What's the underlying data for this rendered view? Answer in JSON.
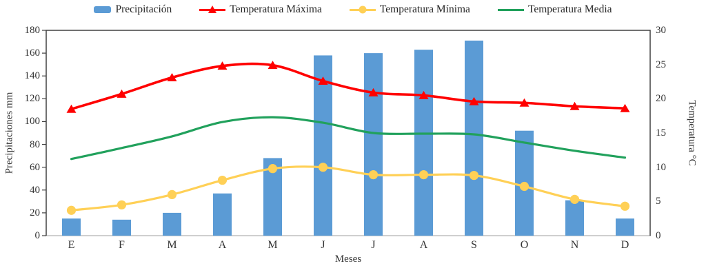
{
  "page": {
    "background": "#ffffff",
    "text_color": "#333333",
    "plot_border_color": "#404040",
    "bottom_axis_color": "#bfbfbf"
  },
  "chart_data": {
    "type": "combo",
    "title": "",
    "xlabel": "Meses",
    "ylabel_left": "Precipitaciones mm",
    "ylabel_right": "Temperatura °C",
    "categories": [
      "E",
      "F",
      "M",
      "A",
      "M",
      "J",
      "J",
      "A",
      "S",
      "O",
      "N",
      "D"
    ],
    "y_left": {
      "min": 0,
      "max": 180,
      "step": 20,
      "ticks": [
        0,
        20,
        40,
        60,
        80,
        100,
        120,
        140,
        160,
        180
      ]
    },
    "y_right": {
      "min": 0,
      "max": 30,
      "step": 5,
      "ticks": [
        0,
        5,
        10,
        15,
        20,
        25,
        30
      ]
    },
    "grid": false,
    "legend_position": "top",
    "series": [
      {
        "name": "Precipitación",
        "type": "bar",
        "axis": "left",
        "color": "#5B9BD5",
        "values": [
          15,
          14,
          20,
          37,
          68,
          158,
          160,
          163,
          171,
          92,
          31,
          15
        ]
      },
      {
        "name": "Temperatura Máxima",
        "type": "line",
        "marker": "triangle",
        "axis": "right",
        "color": "#FF0000",
        "values": [
          18.5,
          20.7,
          23.1,
          24.8,
          24.9,
          22.6,
          20.9,
          20.5,
          19.6,
          19.4,
          18.9,
          18.6
        ]
      },
      {
        "name": "Temperatura Mínima",
        "type": "line",
        "marker": "circle",
        "axis": "right",
        "color": "#FFD056",
        "values": [
          3.7,
          4.5,
          6.0,
          8.1,
          9.8,
          10.0,
          8.9,
          8.9,
          8.8,
          7.2,
          5.3,
          4.3
        ]
      },
      {
        "name": "Temperatura Media",
        "type": "line",
        "marker": "none",
        "axis": "right",
        "color": "#21A15C",
        "values": [
          11.2,
          12.8,
          14.5,
          16.6,
          17.3,
          16.5,
          15.0,
          14.9,
          14.8,
          13.6,
          12.4,
          11.4
        ]
      }
    ]
  }
}
